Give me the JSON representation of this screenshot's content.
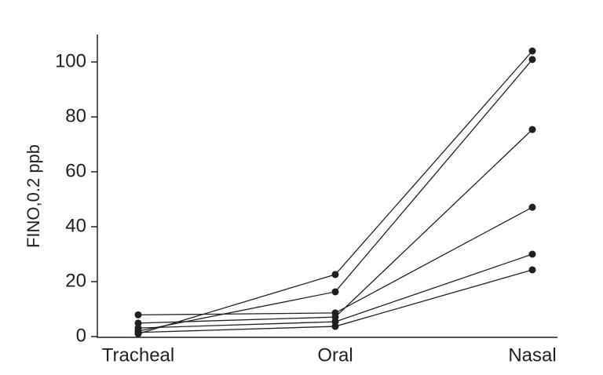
{
  "chart_data": {
    "type": "line",
    "y_label": "FINO,0.2 ppb",
    "categories": [
      "Tracheal",
      "Oral",
      "Nasal"
    ],
    "series": [
      {
        "color": "#231f20",
        "values": [
          1.0,
          22.6,
          104
        ]
      },
      {
        "color": "#231f20",
        "values": [
          2.0,
          16.3,
          100.9
        ]
      },
      {
        "color": "#231f20",
        "values": [
          4.9,
          7.1,
          75.4
        ]
      },
      {
        "color": "#231f20",
        "values": [
          7.9,
          8.6,
          47.1
        ]
      },
      {
        "color": "#231f20",
        "values": [
          3.1,
          5.4,
          30
        ]
      },
      {
        "color": "#231f20",
        "values": [
          1.5,
          3.7,
          24.3
        ]
      }
    ],
    "ylim": [
      0,
      110
    ],
    "yticks": [
      0,
      20,
      40,
      60,
      80,
      100
    ],
    "grid": false
  }
}
